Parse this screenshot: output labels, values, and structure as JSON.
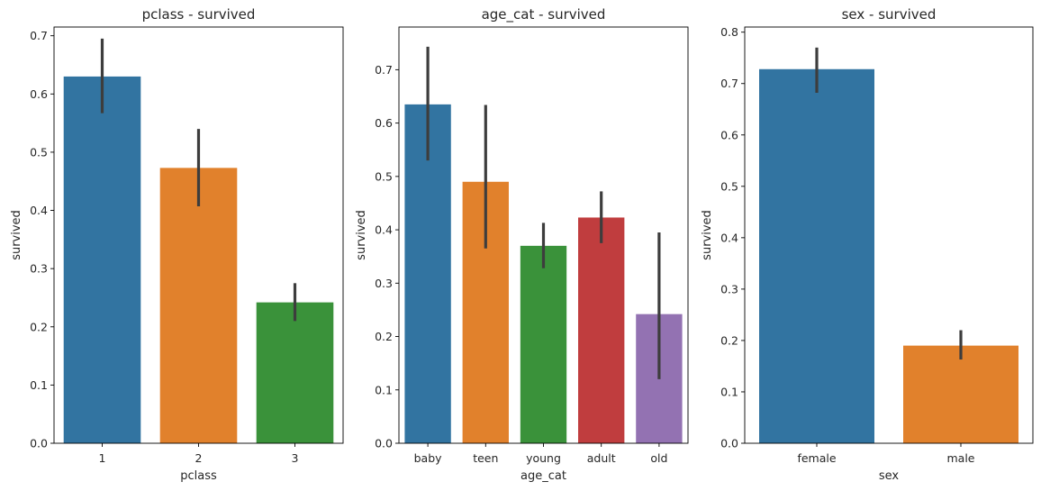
{
  "chart_data": [
    {
      "type": "bar",
      "title": "pclass - survived",
      "xlabel": "pclass",
      "ylabel": "survived",
      "categories": [
        "1",
        "2",
        "3"
      ],
      "values": [
        0.63,
        0.473,
        0.242
      ],
      "ci_low": [
        0.567,
        0.407,
        0.21
      ],
      "ci_high": [
        0.695,
        0.54,
        0.275
      ],
      "colors": [
        "#3274a1",
        "#e1812c",
        "#3a923a"
      ],
      "ylim": [
        0,
        0.715
      ],
      "yticks": [
        0.0,
        0.1,
        0.2,
        0.3,
        0.4,
        0.5,
        0.6,
        0.7
      ],
      "ytick_labels": [
        "0.0",
        "0.1",
        "0.2",
        "0.3",
        "0.4",
        "0.5",
        "0.6",
        "0.7"
      ],
      "grid": false
    },
    {
      "type": "bar",
      "title": "age_cat - survived",
      "xlabel": "age_cat",
      "ylabel": "survived",
      "categories": [
        "baby",
        "teen",
        "young",
        "adult",
        "old"
      ],
      "values": [
        0.635,
        0.49,
        0.37,
        0.423,
        0.242
      ],
      "ci_low": [
        0.53,
        0.365,
        0.328,
        0.375,
        0.12
      ],
      "ci_high": [
        0.743,
        0.634,
        0.413,
        0.472,
        0.395
      ],
      "colors": [
        "#3274a1",
        "#e1812c",
        "#3a923a",
        "#c03d3e",
        "#9372b2"
      ],
      "ylim": [
        0,
        0.78
      ],
      "yticks": [
        0.0,
        0.1,
        0.2,
        0.3,
        0.4,
        0.5,
        0.6,
        0.7
      ],
      "ytick_labels": [
        "0.0",
        "0.1",
        "0.2",
        "0.3",
        "0.4",
        "0.5",
        "0.6",
        "0.7"
      ],
      "grid": false
    },
    {
      "type": "bar",
      "title": "sex - survived",
      "xlabel": "sex",
      "ylabel": "survived",
      "categories": [
        "female",
        "male"
      ],
      "values": [
        0.728,
        0.19
      ],
      "ci_low": [
        0.682,
        0.163
      ],
      "ci_high": [
        0.77,
        0.22
      ],
      "colors": [
        "#3274a1",
        "#e1812c"
      ],
      "ylim": [
        0,
        0.81
      ],
      "yticks": [
        0.0,
        0.1,
        0.2,
        0.3,
        0.4,
        0.5,
        0.6,
        0.7,
        0.8
      ],
      "ytick_labels": [
        "0.0",
        "0.1",
        "0.2",
        "0.3",
        "0.4",
        "0.5",
        "0.6",
        "0.7",
        "0.8"
      ],
      "grid": false
    }
  ]
}
